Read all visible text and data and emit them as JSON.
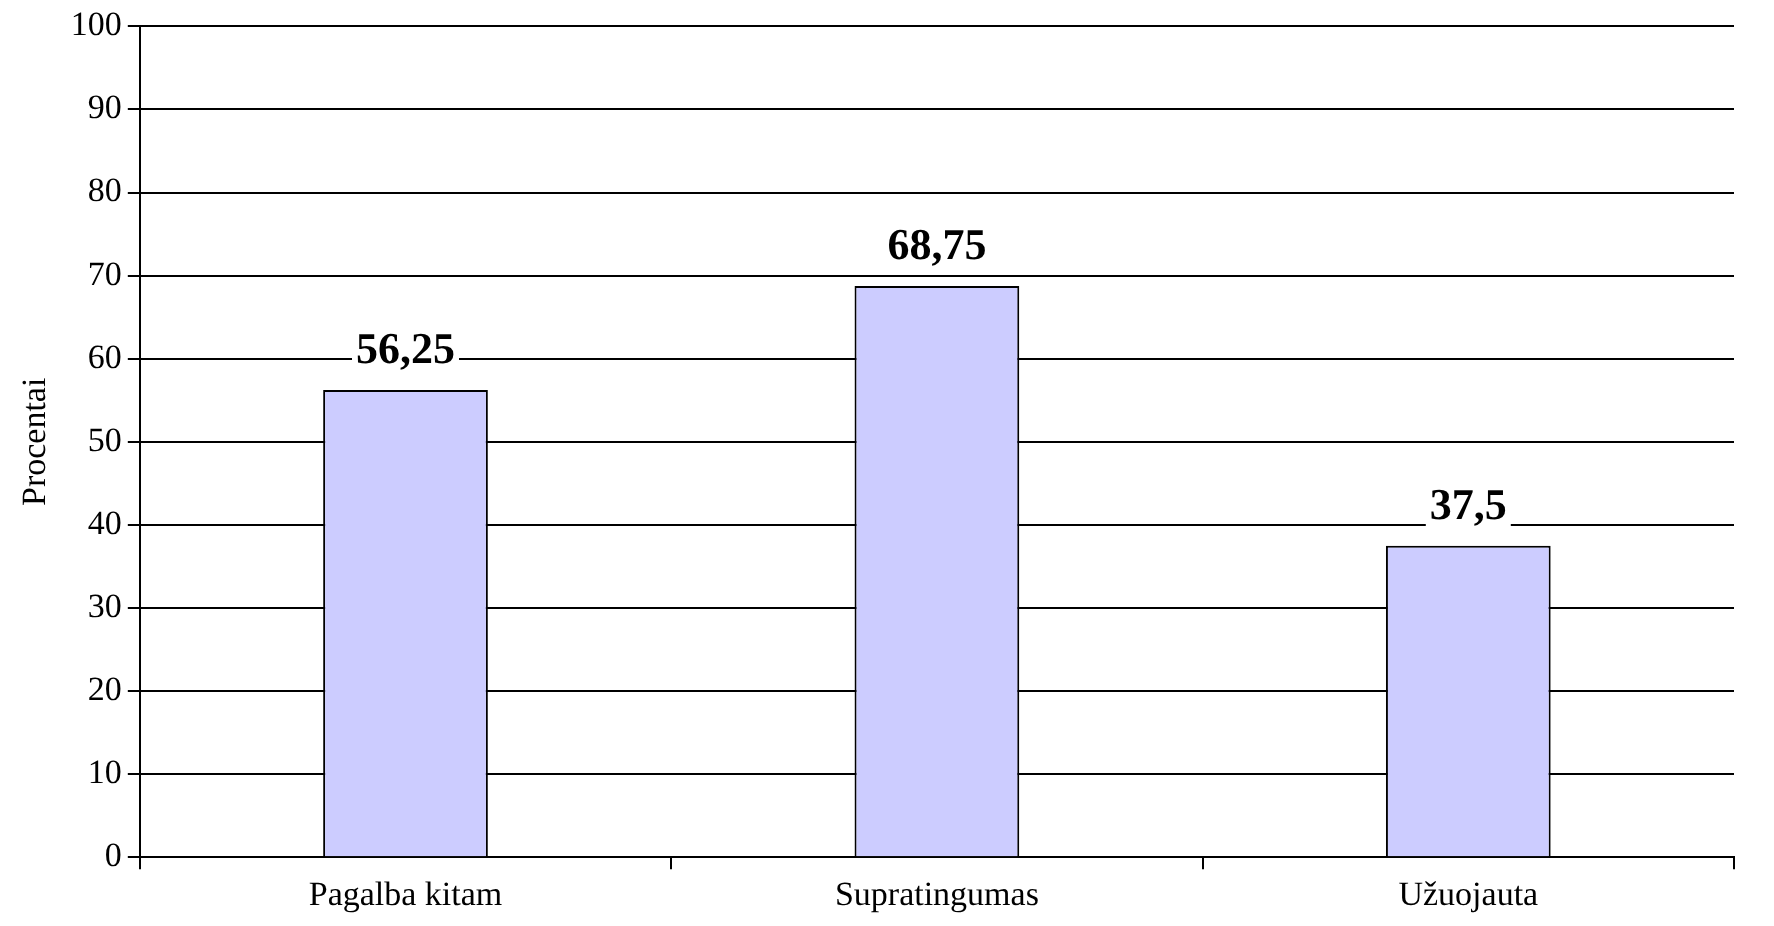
{
  "chart_data": {
    "type": "bar",
    "ylabel": "Procentai",
    "categories": [
      "Pagalba kitam",
      "Supratingumas",
      "Užuojauta"
    ],
    "values": [
      56.25,
      68.75,
      37.5
    ],
    "value_labels": [
      "56,25",
      "68,75",
      "37,5"
    ],
    "color": "#ccccff",
    "ylim": [
      0,
      100
    ],
    "yticks": [
      0,
      10,
      20,
      30,
      40,
      50,
      60,
      70,
      80,
      90,
      100
    ],
    "grid": "y",
    "legend": false
  }
}
